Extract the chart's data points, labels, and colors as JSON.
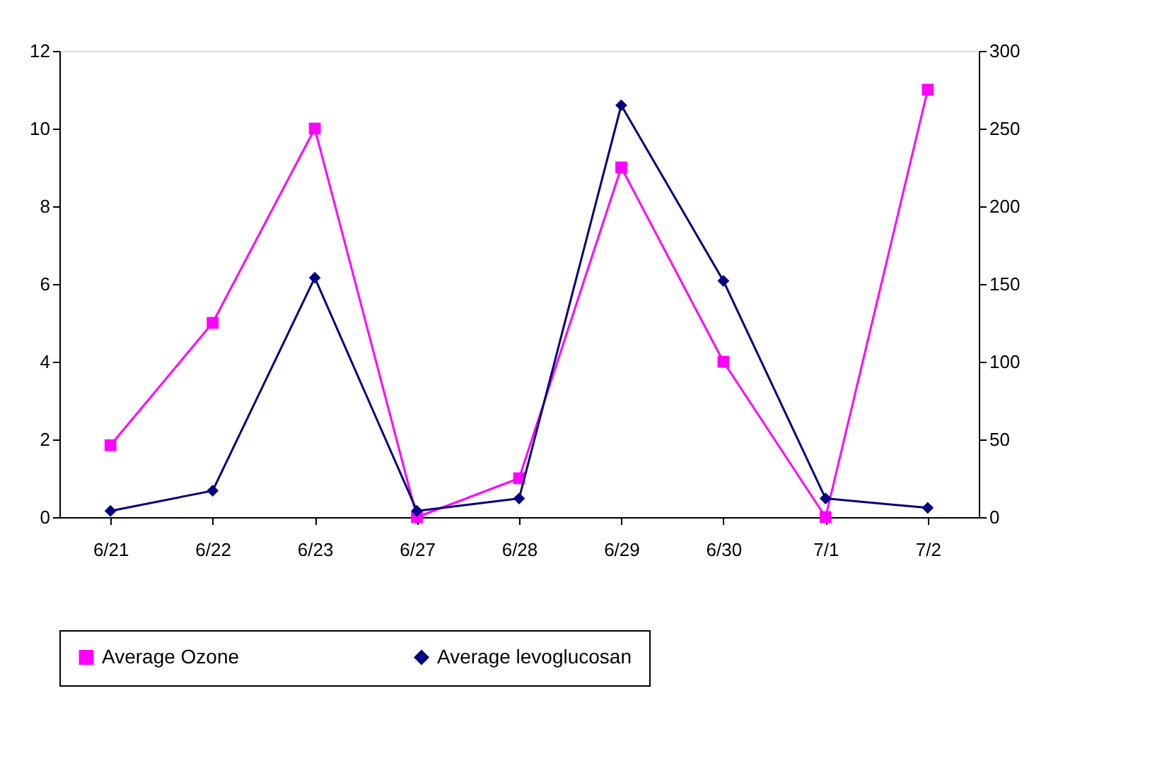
{
  "chart_data": {
    "type": "line",
    "categories": [
      "6/21",
      "6/22",
      "6/23",
      "6/27",
      "6/28",
      "6/29",
      "6/30",
      "7/1",
      "7/2"
    ],
    "series": [
      {
        "name": "Average Ozone",
        "color": "#ff00ff",
        "marker": "square",
        "values": [
          1.85,
          5,
          10,
          0,
          1,
          9,
          4,
          0,
          11
        ]
      },
      {
        "name": "Average levoglucosan",
        "color": "#000080",
        "marker": "diamond",
        "axis": "y2",
        "values": [
          4,
          17,
          154,
          4,
          12,
          265,
          152,
          12,
          6
        ]
      }
    ],
    "ylim": [
      0,
      12
    ],
    "yticks": [
      0,
      2,
      4,
      6,
      8,
      10,
      12
    ],
    "y2lim": [
      0,
      300
    ],
    "y2ticks": [
      0,
      50,
      100,
      150,
      200,
      250,
      300
    ],
    "grid": false,
    "legend": "bottom"
  }
}
